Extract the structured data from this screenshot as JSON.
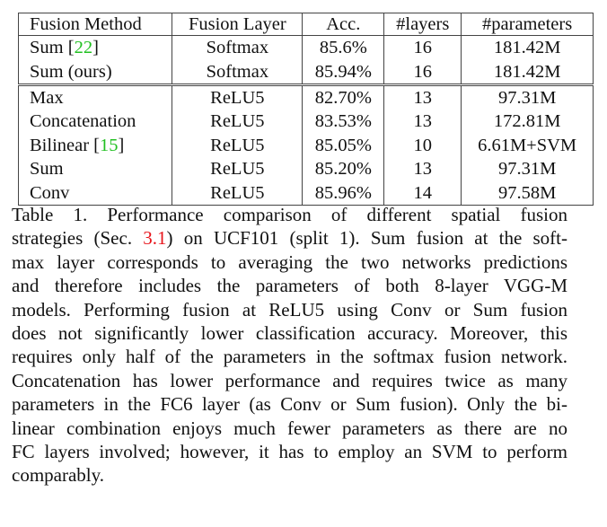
{
  "table": {
    "headers": [
      "Fusion Method",
      "Fusion Layer",
      "Acc.",
      "#layers",
      "#parameters"
    ],
    "group1": [
      {
        "method": "Sum ",
        "ref": "22",
        "method_tail": "",
        "layer": "Softmax",
        "acc": "85.6%",
        "layers": "16",
        "params": "181.42M"
      },
      {
        "method": "Sum (ours)",
        "ref": "",
        "method_tail": "",
        "layer": "Softmax",
        "acc": "85.94%",
        "layers": "16",
        "params": "181.42M"
      }
    ],
    "group2": [
      {
        "method": "Max",
        "ref": "",
        "layer": "ReLU5",
        "acc": "82.70%",
        "layers": "13",
        "params": "97.31M"
      },
      {
        "method": "Concatenation",
        "ref": "",
        "layer": "ReLU5",
        "acc": "83.53%",
        "layers": "13",
        "params": "172.81M"
      },
      {
        "method": "Bilinear ",
        "ref": "15",
        "layer": "ReLU5",
        "acc": "85.05%",
        "layers": "10",
        "params": "6.61M+SVM"
      },
      {
        "method": "Sum",
        "ref": "",
        "layer": "ReLU5",
        "acc": "85.20%",
        "layers": "13",
        "params": "97.31M"
      },
      {
        "method": "Conv",
        "ref": "",
        "layer": "ReLU5",
        "acc": "85.96%",
        "layers": "14",
        "params": "97.58M"
      }
    ]
  },
  "caption": {
    "l1": "Table 1.   Performance comparison of different spatial fusion",
    "l2a": "strategies (Sec. ",
    "l2ref": "3.1",
    "l2b": ") on UCF101 (split 1).  Sum fusion at the soft-",
    "l3": "max layer corresponds to averaging the two networks predictions",
    "l4": "and therefore includes the parameters of both 8-layer VGG-M",
    "l5": "models.  Performing fusion at ReLU5 using Conv or Sum fusion",
    "l6": "does not significantly lower classification accuracy. Moreover, this",
    "l7": "requires only half of the parameters in the softmax fusion network.",
    "l8": "Concatenation has lower performance and requires twice as many",
    "l9": "parameters in the FC6 layer (as Conv or Sum fusion). Only the bi-",
    "l10": "linear combination enjoys much fewer parameters as there are no",
    "l11": "FC layers involved; however, it has to employ an SVM to perform",
    "l12": "comparably."
  }
}
